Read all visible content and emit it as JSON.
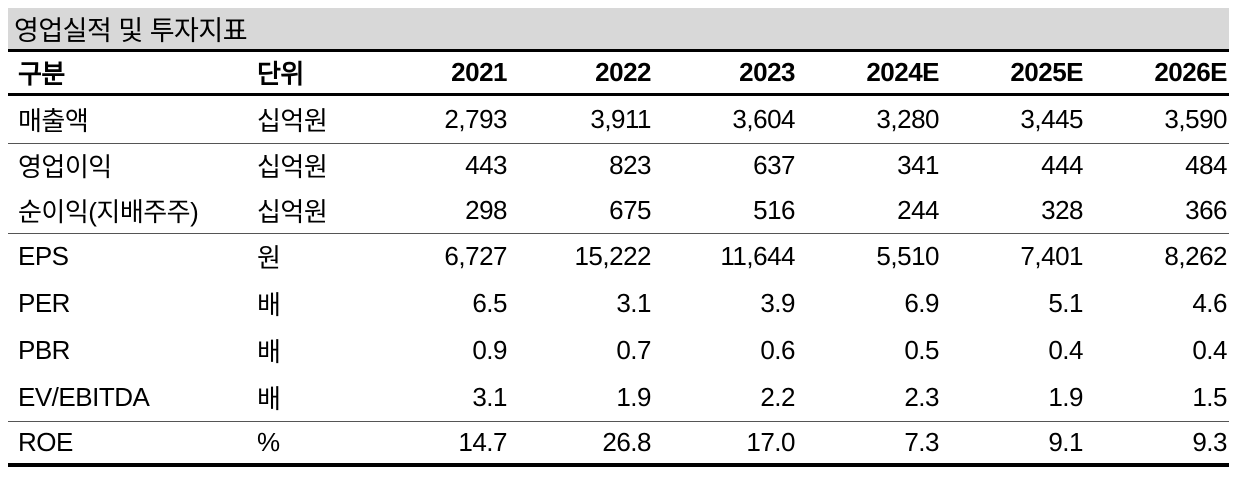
{
  "title": "영업실적 및 투자지표",
  "table": {
    "headers": [
      "구분",
      "단위",
      "2021",
      "2022",
      "2023",
      "2024E",
      "2025E",
      "2026E"
    ],
    "groups": [
      {
        "rows": [
          {
            "label": "매출액",
            "unit": "십억원",
            "values": [
              "2,793",
              "3,911",
              "3,604",
              "3,280",
              "3,445",
              "3,590"
            ]
          }
        ]
      },
      {
        "rows": [
          {
            "label": "영업이익",
            "unit": "십억원",
            "values": [
              "443",
              "823",
              "637",
              "341",
              "444",
              "484"
            ]
          },
          {
            "label": "순이익(지배주주)",
            "unit": "십억원",
            "values": [
              "298",
              "675",
              "516",
              "244",
              "328",
              "366"
            ]
          }
        ]
      },
      {
        "rows": [
          {
            "label": "EPS",
            "unit": "원",
            "values": [
              "6,727",
              "15,222",
              "11,644",
              "5,510",
              "7,401",
              "8,262"
            ]
          },
          {
            "label": "PER",
            "unit": "배",
            "values": [
              "6.5",
              "3.1",
              "3.9",
              "6.9",
              "5.1",
              "4.6"
            ]
          },
          {
            "label": "PBR",
            "unit": "배",
            "values": [
              "0.9",
              "0.7",
              "0.6",
              "0.5",
              "0.4",
              "0.4"
            ]
          },
          {
            "label": "EV/EBITDA",
            "unit": "배",
            "values": [
              "3.1",
              "1.9",
              "2.2",
              "2.3",
              "1.9",
              "1.5"
            ]
          }
        ]
      },
      {
        "rows": [
          {
            "label": "ROE",
            "unit": "%",
            "values": [
              "14.7",
              "26.8",
              "17.0",
              "7.3",
              "9.1",
              "9.3"
            ]
          }
        ]
      }
    ]
  },
  "colors": {
    "title_background": "#d8d8d8",
    "heavy_rule": "#000000",
    "light_rule": "#555555",
    "text": "#000000"
  }
}
